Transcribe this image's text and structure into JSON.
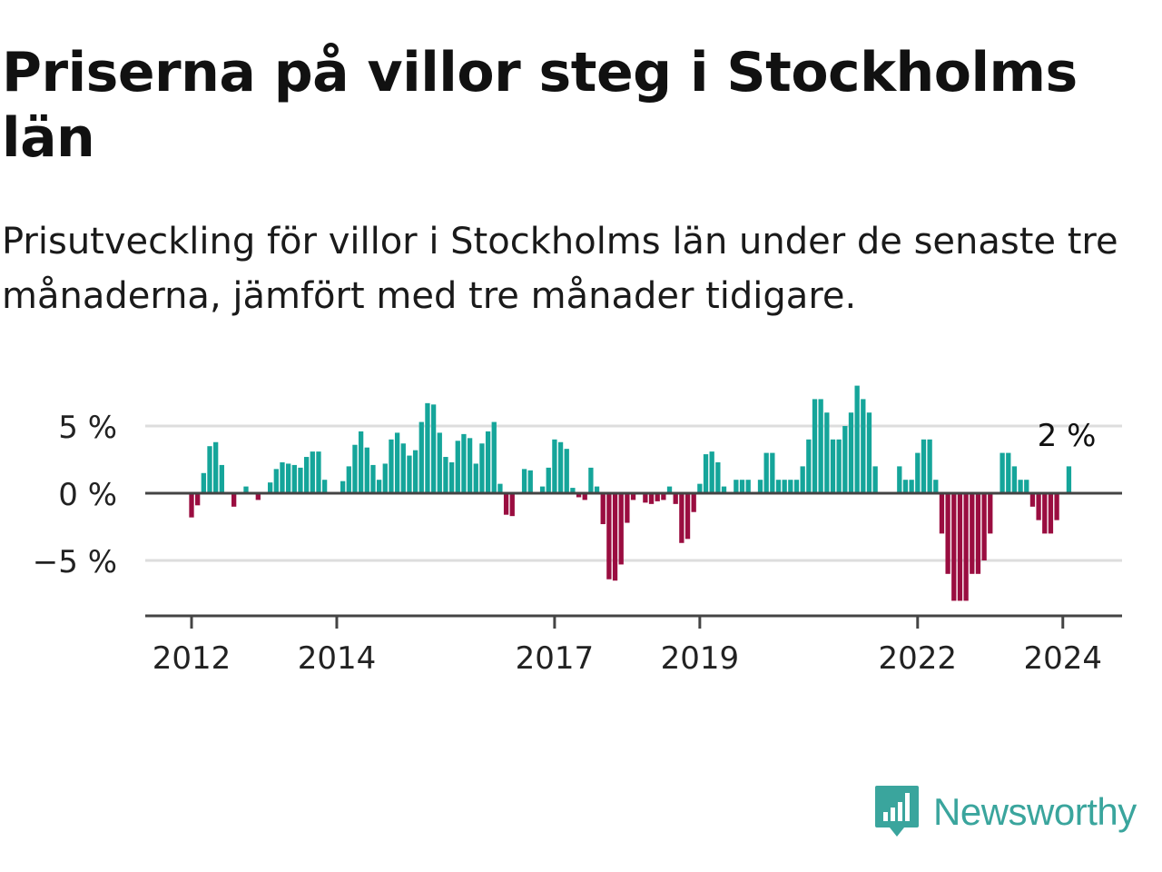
{
  "title": "Priserna på villor steg i Stockholms län",
  "subtitle": "Prisutveckling för villor i Stockholms län under de senaste tre månaderna, jämfört med tre månader tidigare.",
  "brand": {
    "name": "Newsworthy",
    "color": "#3aa59d",
    "icon": "newsworthy-bar-chart-icon"
  },
  "colors": {
    "positive": "#15a59a",
    "negative": "#9a0d40",
    "gridline": "#dddddd",
    "axis": "#444444",
    "text": "#111111"
  },
  "chart_data": {
    "type": "bar",
    "x_start": "2012-01",
    "x_unit": "month",
    "x_tick_labels": [
      {
        "label": "2012",
        "month": "2012-01"
      },
      {
        "label": "2014",
        "month": "2014-01"
      },
      {
        "label": "2017",
        "month": "2017-01"
      },
      {
        "label": "2019",
        "month": "2019-01"
      },
      {
        "label": "2022",
        "month": "2022-01"
      },
      {
        "label": "2024",
        "month": "2024-01"
      }
    ],
    "y_ticks": [
      {
        "value": 5,
        "label": "5 %"
      },
      {
        "value": 0,
        "label": "0 %"
      },
      {
        "value": -5,
        "label": "−5 %"
      }
    ],
    "ylim": [
      -9,
      9
    ],
    "grid": true,
    "last_value_label": "2 %",
    "values": [
      -1.8,
      -0.9,
      1.5,
      3.5,
      3.8,
      2.1,
      0,
      -1.0,
      0,
      0.5,
      0,
      -0.5,
      0,
      0.8,
      1.8,
      2.3,
      2.2,
      2.1,
      1.9,
      2.7,
      3.1,
      3.1,
      1.0,
      0,
      0,
      0.9,
      2.0,
      3.6,
      4.6,
      3.4,
      2.1,
      1.0,
      2.2,
      4.0,
      4.5,
      3.7,
      2.8,
      3.2,
      5.3,
      6.7,
      6.6,
      4.5,
      2.7,
      2.3,
      3.9,
      4.4,
      4.1,
      2.2,
      3.7,
      4.6,
      5.3,
      0.7,
      -1.6,
      -1.7,
      0,
      1.8,
      1.7,
      0,
      0.5,
      1.9,
      4.0,
      3.8,
      3.3,
      0.4,
      -0.3,
      -0.5,
      1.9,
      0.5,
      -2.3,
      -6.4,
      -6.5,
      -5.3,
      -2.2,
      -0.5,
      0,
      -0.7,
      -0.8,
      -0.6,
      -0.5,
      0.5,
      -0.8,
      -3.7,
      -3.4,
      -1.4,
      0.7,
      2.9,
      3.1,
      2.3,
      0.5,
      0,
      1.0,
      1.0,
      1.0,
      0,
      1.0,
      3.0,
      3.0,
      1.0,
      1.0,
      1.0,
      1.0,
      2.0,
      4.0,
      7.0,
      7.0,
      6.0,
      4.0,
      4.0,
      5.0,
      6.0,
      8.0,
      7.0,
      6.0,
      2.0,
      0,
      0,
      0,
      2.0,
      1.0,
      1.0,
      3.0,
      4.0,
      4.0,
      1.0,
      -3.0,
      -6.0,
      -8.0,
      -8.0,
      -8.0,
      -6.0,
      -6.0,
      -5.0,
      -3.0,
      0,
      3.0,
      3.0,
      2.0,
      1.0,
      1.0,
      -1.0,
      -2.0,
      -3.0,
      -3.0,
      -2.0,
      0,
      2.0
    ]
  }
}
